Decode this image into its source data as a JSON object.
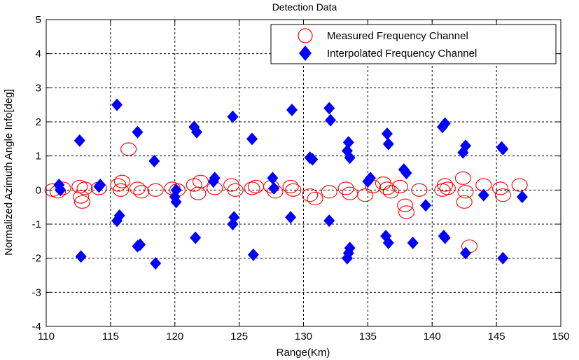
{
  "chart_data": {
    "type": "scatter",
    "title": "Detection Data",
    "xlabel": "Range(Km)",
    "ylabel": "Normalized Azimuth Angle Info[deg]",
    "xlim": [
      110,
      150
    ],
    "ylim": [
      -4,
      5
    ],
    "xticks": [
      110,
      115,
      120,
      125,
      130,
      135,
      140,
      145,
      150
    ],
    "yticks": [
      -4,
      -3,
      -2,
      -1,
      0,
      1,
      2,
      3,
      4,
      5
    ],
    "grid": true,
    "legend_position": "top-right",
    "series": [
      {
        "name": "Measured Frequency Channel",
        "marker": "circle",
        "color": "#ff0000",
        "points": [
          [
            110.5,
            0.0
          ],
          [
            110.9,
            -0.05
          ],
          [
            111.3,
            0.05
          ],
          [
            112.6,
            0.1
          ],
          [
            112.7,
            -0.2
          ],
          [
            112.8,
            -0.35
          ],
          [
            113.0,
            0.05
          ],
          [
            114.1,
            0.05
          ],
          [
            115.6,
            0.15
          ],
          [
            115.8,
            0.0
          ],
          [
            115.9,
            0.25
          ],
          [
            116.4,
            1.2
          ],
          [
            117.1,
            0.05
          ],
          [
            117.4,
            -0.05
          ],
          [
            118.5,
            0.0
          ],
          [
            119.8,
            0.05
          ],
          [
            120.2,
            0.0
          ],
          [
            121.5,
            0.15
          ],
          [
            121.8,
            -0.1
          ],
          [
            122.0,
            0.25
          ],
          [
            123.1,
            0.05
          ],
          [
            124.4,
            0.15
          ],
          [
            124.7,
            0.0
          ],
          [
            126.0,
            0.05
          ],
          [
            126.3,
            0.1
          ],
          [
            127.5,
            0.1
          ],
          [
            127.8,
            -0.05
          ],
          [
            129.0,
            0.1
          ],
          [
            129.2,
            0.0
          ],
          [
            130.5,
            -0.15
          ],
          [
            130.9,
            -0.25
          ],
          [
            132.0,
            -0.05
          ],
          [
            133.3,
            0.05
          ],
          [
            133.6,
            -0.1
          ],
          [
            134.8,
            -0.15
          ],
          [
            135.4,
            0.1
          ],
          [
            136.2,
            0.2
          ],
          [
            136.5,
            0.05
          ],
          [
            136.8,
            -0.05
          ],
          [
            137.5,
            0.1
          ],
          [
            137.9,
            -0.45
          ],
          [
            138.0,
            -0.65
          ],
          [
            139.0,
            0.0
          ],
          [
            140.8,
            0.0
          ],
          [
            141.0,
            0.15
          ],
          [
            141.2,
            0.05
          ],
          [
            142.4,
            0.35
          ],
          [
            142.6,
            -0.05
          ],
          [
            142.5,
            -0.35
          ],
          [
            142.9,
            -1.65
          ],
          [
            144.0,
            0.15
          ],
          [
            145.3,
            0.05
          ],
          [
            145.5,
            -0.15
          ],
          [
            146.8,
            0.15
          ]
        ]
      },
      {
        "name": "Interpolated Frequency Channel",
        "marker": "diamond",
        "color": "#0000ff",
        "points": [
          [
            111.0,
            0.15
          ],
          [
            111.1,
            0.0
          ],
          [
            112.6,
            1.45
          ],
          [
            112.7,
            -1.95
          ],
          [
            114.1,
            0.1
          ],
          [
            114.2,
            0.15
          ],
          [
            115.5,
            2.5
          ],
          [
            115.7,
            -0.75
          ],
          [
            115.5,
            -0.9
          ],
          [
            117.1,
            1.7
          ],
          [
            117.3,
            -1.6
          ],
          [
            117.1,
            -1.65
          ],
          [
            118.4,
            0.85
          ],
          [
            118.5,
            -2.15
          ],
          [
            120.1,
            0.0
          ],
          [
            120.0,
            -0.2
          ],
          [
            120.1,
            -0.35
          ],
          [
            121.5,
            1.85
          ],
          [
            121.7,
            1.7
          ],
          [
            121.6,
            -1.4
          ],
          [
            123.1,
            0.35
          ],
          [
            123.0,
            0.25
          ],
          [
            124.5,
            2.15
          ],
          [
            124.6,
            -0.8
          ],
          [
            124.5,
            -1.0
          ],
          [
            126.0,
            1.5
          ],
          [
            126.1,
            -1.9
          ],
          [
            127.6,
            0.35
          ],
          [
            127.7,
            0.05
          ],
          [
            129.1,
            2.35
          ],
          [
            129.0,
            -0.8
          ],
          [
            130.5,
            0.95
          ],
          [
            130.7,
            0.9
          ],
          [
            132.0,
            2.4
          ],
          [
            132.1,
            2.05
          ],
          [
            132.0,
            -0.9
          ],
          [
            133.5,
            1.4
          ],
          [
            133.4,
            1.15
          ],
          [
            133.6,
            0.95
          ],
          [
            133.6,
            -1.7
          ],
          [
            133.5,
            -1.85
          ],
          [
            133.4,
            -2.0
          ],
          [
            135.2,
            0.35
          ],
          [
            135.0,
            0.25
          ],
          [
            136.5,
            1.65
          ],
          [
            136.6,
            1.35
          ],
          [
            136.4,
            -1.35
          ],
          [
            136.6,
            -1.55
          ],
          [
            137.8,
            0.6
          ],
          [
            138.0,
            0.5
          ],
          [
            138.5,
            -1.55
          ],
          [
            139.5,
            -0.45
          ],
          [
            140.8,
            1.85
          ],
          [
            141.0,
            1.95
          ],
          [
            140.9,
            -1.35
          ],
          [
            141.0,
            -1.4
          ],
          [
            142.6,
            1.3
          ],
          [
            142.4,
            1.1
          ],
          [
            142.6,
            -1.85
          ],
          [
            144.0,
            -0.15
          ],
          [
            145.4,
            1.25
          ],
          [
            145.5,
            1.2
          ],
          [
            145.5,
            -2.0
          ],
          [
            147.0,
            -0.2
          ]
        ]
      }
    ]
  }
}
